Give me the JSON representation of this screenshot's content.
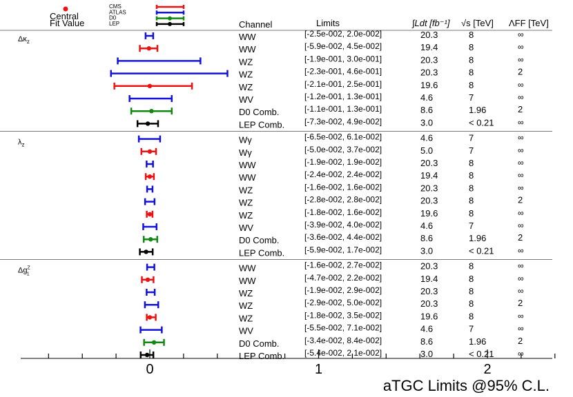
{
  "chart_data": {
    "type": "scatter",
    "title": "aTGC Limits @95% C.L.",
    "xlim": [
      -0.75,
      2.45
    ],
    "x_ticks": [
      {
        "value": 0,
        "label": "0"
      },
      {
        "value": 1,
        "label": "1"
      },
      {
        "value": 2,
        "label": "2"
      }
    ],
    "x_minor_step": 0.2,
    "legend": {
      "central_label_1": "Central",
      "central_label_2": "Fit Value",
      "experiments": [
        {
          "name": "CMS",
          "color": "#ee1111"
        },
        {
          "name": "ATLAS",
          "color": "#1111dd"
        },
        {
          "name": "D0",
          "color": "#118811"
        },
        {
          "name": "LEP",
          "color": "#000000"
        }
      ]
    },
    "columns": {
      "channel": "Channel",
      "limits": "Limits",
      "lumi": "∫Ldt [fb⁻¹]",
      "sqrts": "√s [TeV]",
      "lambda_ff": "ΛFF [TeV]"
    },
    "groups": [
      {
        "label": "Δκz",
        "rows": [
          {
            "exp": "ATLAS",
            "channel": "WW",
            "low": -0.025,
            "high": 0.02,
            "central": 0.0,
            "limits": "[-2.5e-002, 2.0e-002]",
            "lumi": "20.3",
            "sqrts": "8",
            "lambda_ff": "∞"
          },
          {
            "exp": "CMS",
            "channel": "WW",
            "low": -0.059,
            "high": 0.045,
            "central": -0.005,
            "limits": "[-5.9e-002, 4.5e-002]",
            "lumi": "19.4",
            "sqrts": "8",
            "lambda_ff": "∞"
          },
          {
            "exp": "ATLAS",
            "channel": "WZ",
            "low": -0.19,
            "high": 0.3,
            "central": 0.0,
            "limits": "[-1.9e-001, 3.0e-001]",
            "lumi": "20.3",
            "sqrts": "8",
            "lambda_ff": "∞"
          },
          {
            "exp": "ATLAS",
            "channel": "WZ",
            "low": -0.23,
            "high": 0.46,
            "central": 0.0,
            "limits": "[-2.3e-001, 4.6e-001]",
            "lumi": "20.3",
            "sqrts": "8",
            "lambda_ff": "2"
          },
          {
            "exp": "CMS",
            "channel": "WZ",
            "low": -0.21,
            "high": 0.25,
            "central": 0.0,
            "limits": "[-2.1e-001, 2.5e-001]",
            "lumi": "19.6",
            "sqrts": "8",
            "lambda_ff": "∞"
          },
          {
            "exp": "ATLAS",
            "channel": "WV",
            "low": -0.12,
            "high": 0.13,
            "central": 0.0,
            "limits": "[-1.2e-001, 1.3e-001]",
            "lumi": "4.6",
            "sqrts": "7",
            "lambda_ff": "∞"
          },
          {
            "exp": "D0",
            "channel": "D0 Comb.",
            "low": -0.11,
            "high": 0.13,
            "central": 0.01,
            "limits": "[-1.1e-001, 1.3e-001]",
            "lumi": "8.6",
            "sqrts": "1.96",
            "lambda_ff": "2"
          },
          {
            "exp": "LEP",
            "channel": "LEP Comb.",
            "low": -0.073,
            "high": 0.049,
            "central": -0.012,
            "limits": "[-7.3e-002, 4.9e-002]",
            "lumi": "3.0",
            "sqrts": "< 0.21",
            "lambda_ff": "∞"
          }
        ]
      },
      {
        "label": "λz",
        "rows": [
          {
            "exp": "ATLAS",
            "channel": "Wγ",
            "low": -0.065,
            "high": 0.061,
            "central": 0.0,
            "limits": "[-6.5e-002, 6.1e-002]",
            "lumi": "4.6",
            "sqrts": "7",
            "lambda_ff": "∞"
          },
          {
            "exp": "CMS",
            "channel": "Wγ",
            "low": -0.05,
            "high": 0.037,
            "central": 0.0,
            "limits": "[-5.0e-002, 3.7e-002]",
            "lumi": "5.0",
            "sqrts": "7",
            "lambda_ff": "∞"
          },
          {
            "exp": "ATLAS",
            "channel": "WW",
            "low": -0.019,
            "high": 0.019,
            "central": 0.0,
            "limits": "[-1.9e-002, 1.9e-002]",
            "lumi": "20.3",
            "sqrts": "8",
            "lambda_ff": "∞"
          },
          {
            "exp": "CMS",
            "channel": "WW",
            "low": -0.024,
            "high": 0.024,
            "central": 0.0,
            "limits": "[-2.4e-002, 2.4e-002]",
            "lumi": "19.4",
            "sqrts": "8",
            "lambda_ff": "∞"
          },
          {
            "exp": "ATLAS",
            "channel": "WZ",
            "low": -0.016,
            "high": 0.016,
            "central": 0.0,
            "limits": "[-1.6e-002, 1.6e-002]",
            "lumi": "20.3",
            "sqrts": "8",
            "lambda_ff": "∞"
          },
          {
            "exp": "ATLAS",
            "channel": "WZ",
            "low": -0.028,
            "high": 0.028,
            "central": 0.0,
            "limits": "[-2.8e-002, 2.8e-002]",
            "lumi": "20.3",
            "sqrts": "8",
            "lambda_ff": "2"
          },
          {
            "exp": "CMS",
            "channel": "WZ",
            "low": -0.018,
            "high": 0.016,
            "central": 0.0,
            "limits": "[-1.8e-002, 1.6e-002]",
            "lumi": "19.6",
            "sqrts": "8",
            "lambda_ff": "∞"
          },
          {
            "exp": "ATLAS",
            "channel": "WV",
            "low": -0.039,
            "high": 0.04,
            "central": 0.0,
            "limits": "[-3.9e-002, 4.0e-002]",
            "lumi": "4.6",
            "sqrts": "7",
            "lambda_ff": "∞"
          },
          {
            "exp": "D0",
            "channel": "D0 Comb.",
            "low": -0.036,
            "high": 0.044,
            "central": 0.005,
            "limits": "[-3.6e-002, 4.4e-002]",
            "lumi": "8.6",
            "sqrts": "1.96",
            "lambda_ff": "2"
          },
          {
            "exp": "LEP",
            "channel": "LEP Comb.",
            "low": -0.059,
            "high": 0.017,
            "central": -0.022,
            "limits": "[-5.9e-002, 1.7e-002]",
            "lumi": "3.0",
            "sqrts": "< 0.21",
            "lambda_ff": "∞"
          }
        ]
      },
      {
        "label": "Δg1Z",
        "rows": [
          {
            "exp": "ATLAS",
            "channel": "WW",
            "low": -0.016,
            "high": 0.027,
            "central": 0.0,
            "limits": "[-1.6e-002, 2.7e-002]",
            "lumi": "20.3",
            "sqrts": "8",
            "lambda_ff": "∞"
          },
          {
            "exp": "CMS",
            "channel": "WW",
            "low": -0.047,
            "high": 0.022,
            "central": -0.012,
            "limits": "[-4.7e-002, 2.2e-002]",
            "lumi": "19.4",
            "sqrts": "8",
            "lambda_ff": "∞"
          },
          {
            "exp": "ATLAS",
            "channel": "WZ",
            "low": -0.019,
            "high": 0.029,
            "central": 0.0,
            "limits": "[-1.9e-002, 2.9e-002]",
            "lumi": "20.3",
            "sqrts": "8",
            "lambda_ff": "∞"
          },
          {
            "exp": "ATLAS",
            "channel": "WZ",
            "low": -0.029,
            "high": 0.05,
            "central": 0.0,
            "limits": "[-2.9e-002, 5.0e-002]",
            "lumi": "20.3",
            "sqrts": "8",
            "lambda_ff": "2"
          },
          {
            "exp": "CMS",
            "channel": "WZ",
            "low": -0.018,
            "high": 0.035,
            "central": 0.0,
            "limits": "[-1.8e-002, 3.5e-002]",
            "lumi": "19.6",
            "sqrts": "8",
            "lambda_ff": "∞"
          },
          {
            "exp": "ATLAS",
            "channel": "WV",
            "low": -0.055,
            "high": 0.071,
            "central": 0.0,
            "limits": "[-5.5e-002, 7.1e-002]",
            "lumi": "4.6",
            "sqrts": "7",
            "lambda_ff": "∞"
          },
          {
            "exp": "D0",
            "channel": "D0 Comb.",
            "low": -0.034,
            "high": 0.084,
            "central": 0.025,
            "limits": "[-3.4e-002, 8.4e-002]",
            "lumi": "8.6",
            "sqrts": "1.96",
            "lambda_ff": "2"
          },
          {
            "exp": "LEP",
            "channel": "LEP Comb.",
            "low": -0.054,
            "high": 0.021,
            "central": -0.016,
            "limits": "[-5.4e-002, 2.1e-002]",
            "lumi": "3.0",
            "sqrts": "< 0.21",
            "lambda_ff": "∞"
          }
        ]
      }
    ]
  }
}
